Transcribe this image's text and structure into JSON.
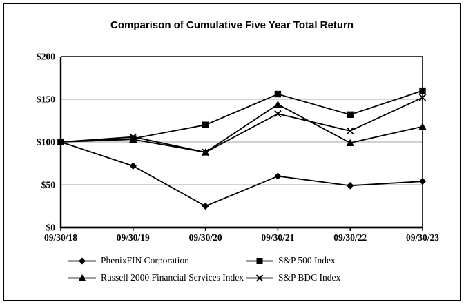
{
  "title": "Comparison of Cumulative Five Year Total Return",
  "colors": {
    "line": "#000000",
    "grid": "#a3a3a3",
    "frame": "#000000",
    "background": "#ffffff"
  },
  "chart_data": {
    "type": "line",
    "title": "Comparison of Cumulative Five Year Total Return",
    "x": [
      "09/30/18",
      "09/30/19",
      "09/30/20",
      "09/30/21",
      "09/30/22",
      "09/30/23"
    ],
    "xlabel": "",
    "ylabel": "",
    "ylim": [
      0,
      200
    ],
    "yticks": [
      0,
      50,
      100,
      150,
      200
    ],
    "ytick_labels": [
      "$0",
      "$50",
      "$100",
      "$150",
      "$200"
    ],
    "grid": "horizontal",
    "legend_position": "bottom",
    "series": [
      {
        "name": "PhenixFIN Corporation",
        "marker": "diamond",
        "values": [
          100,
          72,
          25,
          60,
          49,
          54
        ]
      },
      {
        "name": "S&P 500 Index",
        "marker": "square",
        "values": [
          100,
          104,
          120,
          156,
          132,
          160
        ]
      },
      {
        "name": "Russell 2000 Financial Services Index",
        "marker": "triangle",
        "values": [
          100,
          103,
          88,
          144,
          99,
          118
        ]
      },
      {
        "name": "S&P BDC Index",
        "marker": "x",
        "values": [
          100,
          106,
          88,
          133,
          113,
          152
        ]
      }
    ]
  }
}
